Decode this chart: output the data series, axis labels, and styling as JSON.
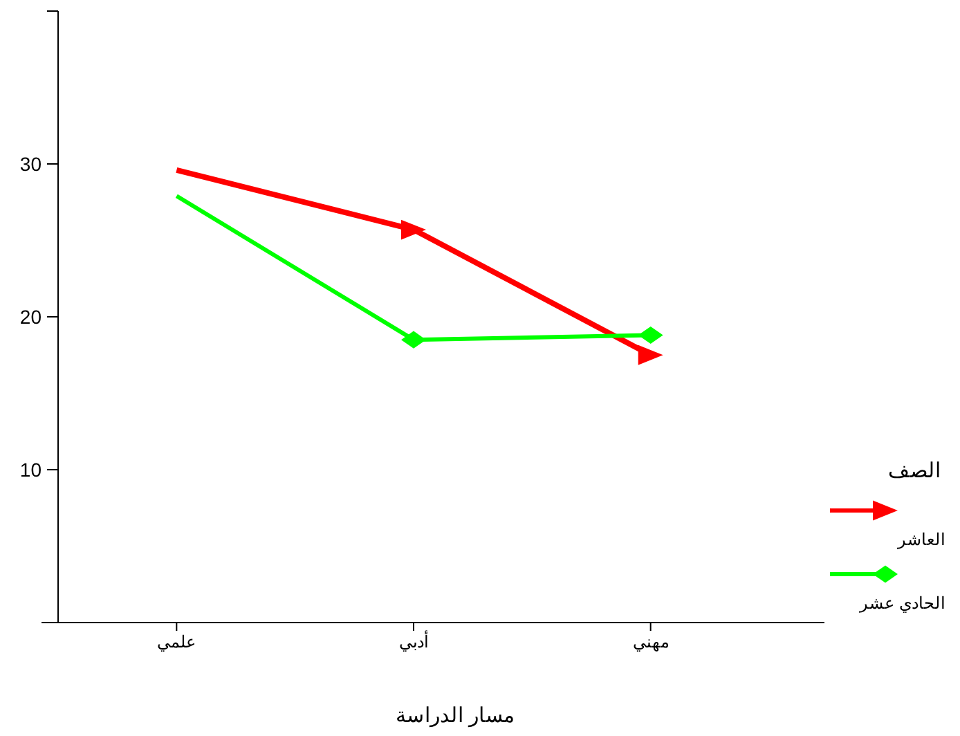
{
  "chart_data": {
    "type": "line",
    "xlabel": "مسار الدراسة",
    "legend_title": "الصف",
    "categories": [
      "علمي",
      "أدبي",
      "مهني"
    ],
    "series": [
      {
        "name": "العاشر",
        "color": "#ff0000",
        "marker": "triangle",
        "values": [
          29.6,
          25.7,
          17.5
        ]
      },
      {
        "name": "الحادي عشر",
        "color": "#00ff00",
        "marker": "diamond",
        "values": [
          27.9,
          18.5,
          18.8
        ]
      }
    ],
    "ylim": [
      0,
      40
    ],
    "yticks": [
      {
        "value": 0,
        "label": null
      },
      10,
      20,
      30,
      {
        "value": 40,
        "label": null
      }
    ],
    "grid": false,
    "legend": "right",
    "line_style": "solid"
  }
}
